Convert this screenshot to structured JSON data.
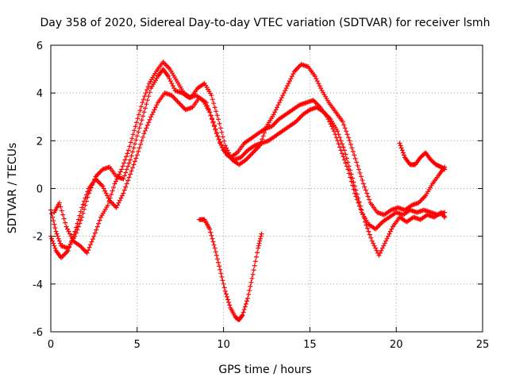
{
  "chart_data": {
    "type": "scatter",
    "title": "Day 358 of 2020, Sidereal Day-to-day VTEC variation (SDTVAR) for receiver lsmh",
    "xlabel": "GPS time / hours",
    "ylabel": "SDTVAR / TECUs",
    "xlim": [
      0,
      25
    ],
    "ylim": [
      -6,
      6
    ],
    "xticks": [
      0,
      5,
      10,
      15,
      20,
      25
    ],
    "yticks": [
      -6,
      -4,
      -2,
      0,
      2,
      4,
      6
    ],
    "grid": true,
    "marker": "plus",
    "color": "#ff0000",
    "series": [
      {
        "x": [
          0.0,
          0.3,
          0.6,
          1.0,
          1.4,
          1.8,
          2.2,
          2.6,
          3.0,
          3.4,
          3.8,
          4.2,
          4.6,
          5.0,
          5.4,
          5.8,
          6.2,
          6.5,
          6.8,
          7.2,
          7.6,
          8.0,
          8.4,
          8.8,
          9.2,
          9.6,
          10.0,
          10.4,
          10.8,
          11.2,
          11.6,
          12.0,
          12.4,
          12.8,
          13.2,
          13.6,
          14.0,
          14.4,
          14.8,
          15.2,
          15.6,
          16.0,
          16.4,
          16.8,
          17.2,
          17.6,
          18.0,
          18.4,
          18.8,
          19.2,
          19.6,
          20.0,
          20.4,
          20.8,
          21.2,
          21.6,
          22.0,
          22.4,
          22.8
        ],
        "y": [
          -0.9,
          -1.8,
          -2.4,
          -2.5,
          -2.0,
          -1.2,
          -0.2,
          0.5,
          0.8,
          0.9,
          0.5,
          0.4,
          1.2,
          2.2,
          3.2,
          4.2,
          4.7,
          5.0,
          4.7,
          4.1,
          4.0,
          3.8,
          3.9,
          3.7,
          3.2,
          2.3,
          1.6,
          1.3,
          1.5,
          1.9,
          2.1,
          2.3,
          2.5,
          2.6,
          2.9,
          3.1,
          3.3,
          3.5,
          3.6,
          3.7,
          3.4,
          3.0,
          2.4,
          1.6,
          0.8,
          -0.2,
          -1.0,
          -1.5,
          -1.7,
          -1.4,
          -1.2,
          -1.0,
          -1.1,
          -0.9,
          -1.0,
          -0.9,
          -1.0,
          -1.1,
          -1.0
        ]
      },
      {
        "x": [
          0.0,
          0.3,
          0.6,
          1.0,
          1.4,
          1.8,
          2.2,
          2.6,
          3.0,
          3.4,
          3.8,
          4.2,
          4.6,
          5.0,
          5.4,
          5.8,
          6.2,
          6.6,
          7.0,
          7.4,
          7.8,
          8.2,
          8.6,
          9.0,
          9.4,
          9.8,
          10.2,
          10.6,
          11.0,
          11.4,
          11.8,
          12.2,
          12.6,
          13.0,
          13.4,
          13.8,
          14.2,
          14.6,
          15.0,
          15.4,
          15.8,
          16.2,
          16.6,
          17.0,
          17.4,
          17.8,
          18.2,
          18.6,
          19.0,
          19.4,
          19.8,
          20.2,
          20.6,
          21.0,
          21.4,
          21.8,
          22.2,
          22.6,
          22.8
        ],
        "y": [
          -2.0,
          -2.6,
          -2.9,
          -2.6,
          -1.8,
          -0.8,
          0.0,
          0.4,
          0.1,
          -0.5,
          -0.8,
          -0.2,
          0.6,
          1.4,
          2.3,
          3.0,
          3.6,
          4.0,
          3.9,
          3.6,
          3.3,
          3.4,
          3.8,
          3.6,
          2.8,
          1.9,
          1.4,
          1.2,
          1.3,
          1.6,
          1.8,
          1.9,
          2.0,
          2.2,
          2.4,
          2.6,
          2.8,
          3.1,
          3.3,
          3.4,
          3.2,
          2.9,
          2.4,
          1.6,
          0.6,
          -0.4,
          -1.4,
          -2.2,
          -2.8,
          -2.2,
          -1.6,
          -1.2,
          -1.4,
          -1.2,
          -1.3,
          -1.1,
          -1.2,
          -1.0,
          -1.2
        ]
      },
      {
        "x": [
          0.2,
          0.5,
          0.9,
          1.3,
          1.7,
          2.1,
          2.5,
          2.9,
          3.3,
          3.7,
          4.1,
          4.5,
          4.9,
          5.3,
          5.7,
          6.1,
          6.5,
          6.9,
          7.3,
          7.7,
          8.1,
          8.5,
          8.9,
          9.3,
          9.7,
          10.1,
          10.5,
          10.9,
          11.3,
          11.7,
          12.1,
          12.5,
          12.9,
          13.3,
          13.7,
          14.1,
          14.5,
          14.9,
          15.3,
          15.7,
          16.1,
          16.5,
          16.9,
          17.3,
          17.7,
          18.1,
          18.5,
          18.9,
          19.3,
          19.7,
          20.1,
          20.5,
          20.9,
          21.3,
          21.7,
          22.1,
          22.5,
          22.8
        ],
        "y": [
          -1.0,
          -0.6,
          -1.6,
          -2.2,
          -2.4,
          -2.7,
          -2.0,
          -1.2,
          -0.7,
          0.2,
          0.8,
          1.6,
          2.6,
          3.6,
          4.4,
          4.9,
          5.3,
          5.0,
          4.5,
          4.0,
          3.8,
          4.2,
          4.4,
          3.9,
          2.9,
          1.8,
          1.2,
          1.0,
          1.2,
          1.5,
          1.8,
          2.6,
          3.1,
          3.7,
          4.3,
          4.9,
          5.2,
          5.1,
          4.7,
          4.1,
          3.6,
          3.2,
          2.8,
          2.0,
          1.1,
          0.2,
          -0.6,
          -1.0,
          -1.1,
          -0.9,
          -0.8,
          -0.9,
          -0.7,
          -0.6,
          -0.3,
          0.2,
          0.6,
          0.9
        ]
      },
      {
        "x": [
          8.6,
          8.9,
          9.2,
          9.5,
          9.8,
          10.1,
          10.4,
          10.7,
          10.9,
          11.1,
          11.4,
          11.7,
          12.0,
          12.2
        ],
        "y": [
          -1.3,
          -1.3,
          -1.7,
          -2.5,
          -3.4,
          -4.3,
          -5.0,
          -5.4,
          -5.5,
          -5.3,
          -4.6,
          -3.6,
          -2.5,
          -1.9
        ]
      },
      {
        "x": [
          20.2,
          20.5,
          20.8,
          21.1,
          21.4,
          21.7,
          22.0,
          22.3,
          22.6,
          22.8
        ],
        "y": [
          1.9,
          1.3,
          1.0,
          1.0,
          1.3,
          1.5,
          1.2,
          1.0,
          0.9,
          0.8
        ]
      }
    ]
  }
}
